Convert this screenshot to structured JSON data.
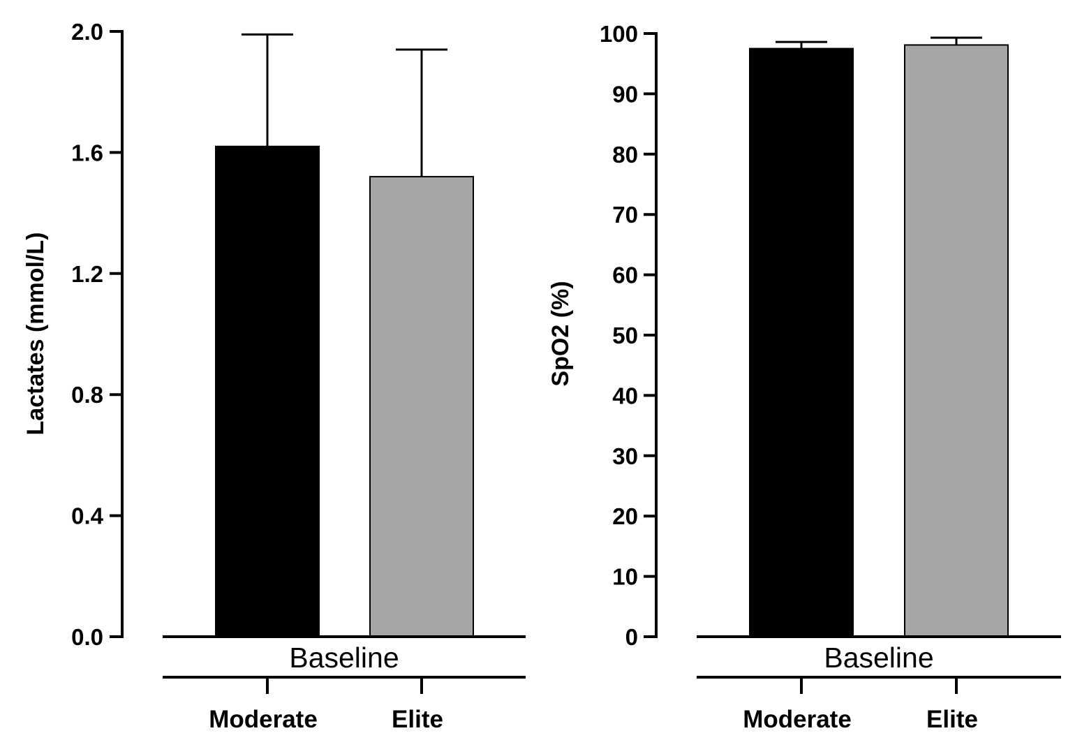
{
  "colors": {
    "moderate": "#000000",
    "elite": "#a6a6a8",
    "axis": "#000000",
    "bar_edge": "#000000"
  },
  "chart_data": [
    {
      "type": "bar",
      "group": "Baseline",
      "categories": [
        "Moderate",
        "Elite"
      ],
      "values": [
        1.62,
        1.52
      ],
      "error_upper": [
        1.99,
        1.94
      ],
      "ylabel": "Lactates (mmol/L)",
      "xlabel": "",
      "ylim": [
        0,
        2.0
      ],
      "yticks": [
        "0.0",
        "0.4",
        "0.8",
        "1.2",
        "1.6",
        "2.0"
      ],
      "grid": false
    },
    {
      "type": "bar",
      "group": "Baseline",
      "categories": [
        "Moderate",
        "Elite"
      ],
      "values": [
        97.5,
        98.1
      ],
      "error_upper": [
        98.6,
        99.3
      ],
      "ylabel": "SpO2 (%)",
      "xlabel": "",
      "ylim": [
        0,
        100
      ],
      "yticks": [
        "0",
        "10",
        "20",
        "30",
        "40",
        "50",
        "60",
        "70",
        "80",
        "90",
        "100"
      ],
      "grid": false
    }
  ]
}
